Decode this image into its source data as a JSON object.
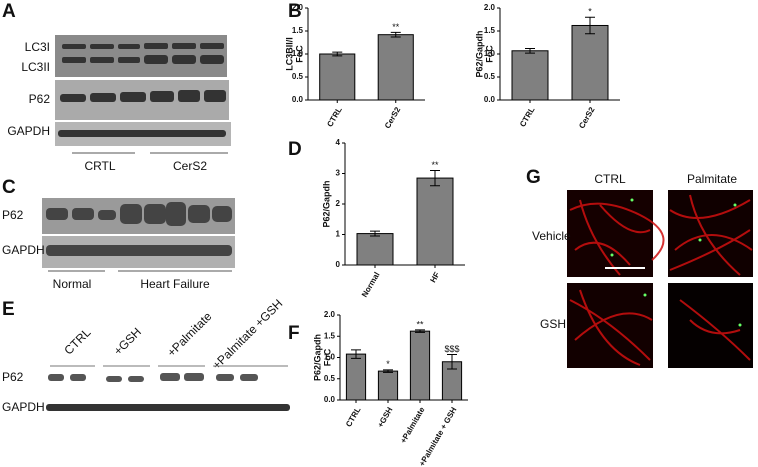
{
  "panels": [
    "A",
    "B",
    "C",
    "D",
    "E",
    "F",
    "G"
  ],
  "blots": {
    "A": {
      "rows": [
        "LC3I",
        "LC3II",
        "P62",
        "GAPDH"
      ],
      "groups": [
        "CRTL",
        "CerS2"
      ]
    },
    "C": {
      "rows": [
        "P62",
        "GAPDH"
      ],
      "groups": [
        "Normal",
        "Heart Failure"
      ]
    },
    "E": {
      "rows": [
        "P62",
        "GAPDH"
      ],
      "groups": [
        "CTRL",
        "+GSH",
        "+Palmitate",
        "+Palmitate +GSH"
      ]
    }
  },
  "images": {
    "columns": [
      "CTRL",
      "Palmitate"
    ],
    "rows": [
      "Vehicle",
      "GSH"
    ]
  },
  "chart_data": [
    {
      "type": "bar",
      "ylabel": [
        "LC3BII/I",
        "FoC"
      ],
      "categories": [
        "CTRL",
        "CerS2"
      ],
      "values": [
        1.0,
        1.42
      ],
      "errors": [
        0.04,
        0.05
      ],
      "significance": [
        null,
        "**"
      ],
      "color": "#808080",
      "ylim": [
        0,
        2.0
      ],
      "yticks": [
        {
          "value": 0,
          "label": "0.0"
        },
        {
          "value": 0.5,
          "label": "0.5"
        },
        {
          "value": 1.0,
          "label": "1.0"
        },
        {
          "value": 1.5,
          "label": "1.5"
        },
        {
          "value": 2.0,
          "label": "2.0"
        }
      ]
    },
    {
      "type": "bar",
      "ylabel": [
        "P62/Gapdh",
        "FoC"
      ],
      "categories": [
        "CTRL",
        "CerS2"
      ],
      "values": [
        1.07,
        1.62
      ],
      "errors": [
        0.05,
        0.18
      ],
      "significance": [
        null,
        "*"
      ],
      "color": "#808080",
      "ylim": [
        0,
        2.0
      ],
      "yticks": [
        {
          "value": 0,
          "label": "0.0"
        },
        {
          "value": 0.5,
          "label": "0.5"
        },
        {
          "value": 1.0,
          "label": "1.0"
        },
        {
          "value": 1.5,
          "label": "1.5"
        },
        {
          "value": 2.0,
          "label": "2.0"
        }
      ]
    },
    {
      "type": "bar",
      "ylabel": [
        "P62/Gapdh"
      ],
      "categories": [
        "Normal",
        "HF"
      ],
      "values": [
        1.03,
        2.85
      ],
      "errors": [
        0.08,
        0.25
      ],
      "significance": [
        null,
        "**"
      ],
      "color": "#808080",
      "ylim": [
        0,
        4
      ],
      "yticks": [
        0,
        1,
        2,
        3,
        4
      ]
    },
    {
      "type": "bar",
      "ylabel": [
        "P62/Gapdh",
        "FoC"
      ],
      "categories": [
        "CTRL",
        "+GSH",
        "+Palmitate",
        "+Palmitate + GSH"
      ],
      "values": [
        1.08,
        0.68,
        1.62,
        0.9
      ],
      "errors": [
        0.1,
        0.03,
        0.03,
        0.17
      ],
      "significance": [
        null,
        "*",
        "**",
        "$$$"
      ],
      "color": "#808080",
      "ylim": [
        0,
        2.0
      ],
      "yticks": [
        {
          "value": 0,
          "label": "0.0"
        },
        {
          "value": 0.5,
          "label": "0.5"
        },
        {
          "value": 1.0,
          "label": "1.0"
        },
        {
          "value": 1.5,
          "label": "1.5"
        },
        {
          "value": 2.0,
          "label": "2.0"
        }
      ]
    }
  ]
}
